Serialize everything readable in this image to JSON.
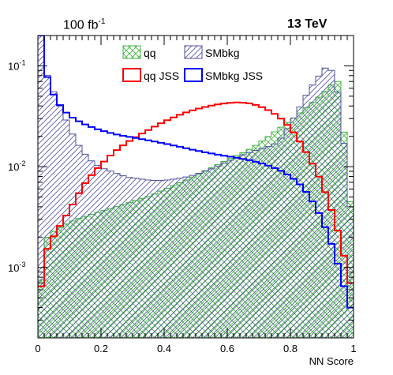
{
  "header": {
    "lumi_value": "100 fb",
    "lumi_exp": "-1",
    "energy": "13 TeV"
  },
  "chart_data": {
    "type": "histogram",
    "title": "",
    "xlabel": "NN Score",
    "ylabel": "",
    "xlim": [
      0,
      1
    ],
    "ylim": [
      0.0002,
      0.2
    ],
    "y_scale": "log",
    "x_ticks": [
      "0",
      "0.2",
      "0.4",
      "0.6",
      "0.8",
      "1"
    ],
    "y_ticks": [
      {
        "base": "10",
        "exp": "-1",
        "value": 0.1
      },
      {
        "base": "10",
        "exp": "-2",
        "value": 0.01
      },
      {
        "base": "10",
        "exp": "-3",
        "value": 0.001
      }
    ],
    "bin_width": 0.02,
    "legend": {
      "placement": "top-center",
      "entries": [
        {
          "label": "qq",
          "style": "hatch-cross",
          "color": "#3cb43c"
        },
        {
          "label": "SMbkg",
          "style": "hatch-diag",
          "color": "#5050a0"
        },
        {
          "label": "qq JSS",
          "style": "line",
          "color": "#ff0000"
        },
        {
          "label": "SMbkg JSS",
          "style": "line",
          "color": "#0000ff"
        }
      ]
    },
    "series": [
      {
        "name": "qq",
        "style": "hatch-cross",
        "color": "#3cb43c",
        "anchors": [
          [
            0.01,
            0.00075
          ],
          [
            0.02,
            0.0018
          ],
          [
            0.04,
            0.0022
          ],
          [
            0.08,
            0.0026
          ],
          [
            0.12,
            0.003
          ],
          [
            0.2,
            0.0036
          ],
          [
            0.28,
            0.0043
          ],
          [
            0.36,
            0.0052
          ],
          [
            0.42,
            0.0063
          ],
          [
            0.48,
            0.0076
          ],
          [
            0.55,
            0.0098
          ],
          [
            0.62,
            0.0125
          ],
          [
            0.66,
            0.0142
          ],
          [
            0.7,
            0.017
          ],
          [
            0.74,
            0.021
          ],
          [
            0.78,
            0.026
          ],
          [
            0.82,
            0.032
          ],
          [
            0.86,
            0.041
          ],
          [
            0.88,
            0.046
          ],
          [
            0.9,
            0.052
          ],
          [
            0.92,
            0.06
          ],
          [
            0.94,
            0.07
          ],
          [
            0.95,
            0.07
          ],
          [
            0.96,
            0.045
          ],
          [
            0.97,
            0.022
          ],
          [
            0.98,
            0.011
          ],
          [
            0.99,
            0.0045
          ]
        ]
      },
      {
        "name": "SMbkg",
        "style": "hatch-diag",
        "color": "#5050a0",
        "anchors": [
          [
            0.01,
            0.2
          ],
          [
            0.02,
            0.1
          ],
          [
            0.04,
            0.065
          ],
          [
            0.08,
            0.034
          ],
          [
            0.12,
            0.018
          ],
          [
            0.16,
            0.012
          ],
          [
            0.2,
            0.0098
          ],
          [
            0.24,
            0.0088
          ],
          [
            0.28,
            0.0079
          ],
          [
            0.32,
            0.0076
          ],
          [
            0.36,
            0.0073
          ],
          [
            0.4,
            0.0073
          ],
          [
            0.44,
            0.0076
          ],
          [
            0.48,
            0.008
          ],
          [
            0.52,
            0.0088
          ],
          [
            0.56,
            0.0098
          ],
          [
            0.6,
            0.0112
          ],
          [
            0.64,
            0.0128
          ],
          [
            0.68,
            0.0142
          ],
          [
            0.72,
            0.0155
          ],
          [
            0.74,
            0.0162
          ],
          [
            0.76,
            0.0175
          ],
          [
            0.78,
            0.021
          ],
          [
            0.8,
            0.027
          ],
          [
            0.82,
            0.034
          ],
          [
            0.84,
            0.045
          ],
          [
            0.86,
            0.058
          ],
          [
            0.88,
            0.072
          ],
          [
            0.9,
            0.087
          ],
          [
            0.91,
            0.095
          ],
          [
            0.92,
            0.1
          ],
          [
            0.93,
            0.09
          ],
          [
            0.94,
            0.075
          ],
          [
            0.95,
            0.055
          ],
          [
            0.96,
            0.035
          ],
          [
            0.97,
            0.017
          ],
          [
            0.98,
            0.0075
          ],
          [
            0.99,
            0.004
          ]
        ]
      },
      {
        "name": "qq JSS",
        "style": "line",
        "color": "#ff0000",
        "anchors": [
          [
            0.01,
            0.00065
          ],
          [
            0.02,
            0.0013
          ],
          [
            0.04,
            0.0018
          ],
          [
            0.06,
            0.0023
          ],
          [
            0.08,
            0.0029
          ],
          [
            0.1,
            0.0037
          ],
          [
            0.12,
            0.0048
          ],
          [
            0.14,
            0.0062
          ],
          [
            0.16,
            0.0076
          ],
          [
            0.2,
            0.0105
          ],
          [
            0.24,
            0.0138
          ],
          [
            0.28,
            0.0172
          ],
          [
            0.32,
            0.0205
          ],
          [
            0.36,
            0.024
          ],
          [
            0.4,
            0.028
          ],
          [
            0.44,
            0.0318
          ],
          [
            0.48,
            0.0355
          ],
          [
            0.52,
            0.0385
          ],
          [
            0.56,
            0.041
          ],
          [
            0.6,
            0.0428
          ],
          [
            0.64,
            0.0435
          ],
          [
            0.68,
            0.042
          ],
          [
            0.72,
            0.038
          ],
          [
            0.76,
            0.032
          ],
          [
            0.78,
            0.028
          ],
          [
            0.8,
            0.024
          ],
          [
            0.82,
            0.02
          ],
          [
            0.84,
            0.0158
          ],
          [
            0.86,
            0.0123
          ],
          [
            0.88,
            0.0093
          ],
          [
            0.9,
            0.0068
          ],
          [
            0.92,
            0.0046
          ],
          [
            0.94,
            0.003
          ],
          [
            0.96,
            0.0018
          ],
          [
            0.98,
            0.00095
          ],
          [
            0.99,
            0.0007
          ]
        ]
      },
      {
        "name": "SMbkg JSS",
        "style": "line",
        "color": "#0000ff",
        "anchors": [
          [
            0.01,
            0.2
          ],
          [
            0.02,
            0.1
          ],
          [
            0.04,
            0.06
          ],
          [
            0.06,
            0.045
          ],
          [
            0.08,
            0.037
          ],
          [
            0.1,
            0.032
          ],
          [
            0.14,
            0.027
          ],
          [
            0.18,
            0.024
          ],
          [
            0.22,
            0.022
          ],
          [
            0.26,
            0.0205
          ],
          [
            0.3,
            0.0195
          ],
          [
            0.34,
            0.0185
          ],
          [
            0.38,
            0.0175
          ],
          [
            0.42,
            0.0165
          ],
          [
            0.46,
            0.0155
          ],
          [
            0.5,
            0.0145
          ],
          [
            0.54,
            0.0137
          ],
          [
            0.58,
            0.013
          ],
          [
            0.62,
            0.0124
          ],
          [
            0.66,
            0.0118
          ],
          [
            0.7,
            0.011
          ],
          [
            0.74,
            0.01
          ],
          [
            0.78,
            0.0088
          ],
          [
            0.82,
            0.0072
          ],
          [
            0.84,
            0.0062
          ],
          [
            0.86,
            0.0051
          ],
          [
            0.88,
            0.004
          ],
          [
            0.9,
            0.003
          ],
          [
            0.92,
            0.0021
          ],
          [
            0.94,
            0.0014
          ],
          [
            0.96,
            0.00085
          ],
          [
            0.98,
            0.0005
          ],
          [
            0.99,
            0.0004
          ]
        ]
      }
    ]
  }
}
